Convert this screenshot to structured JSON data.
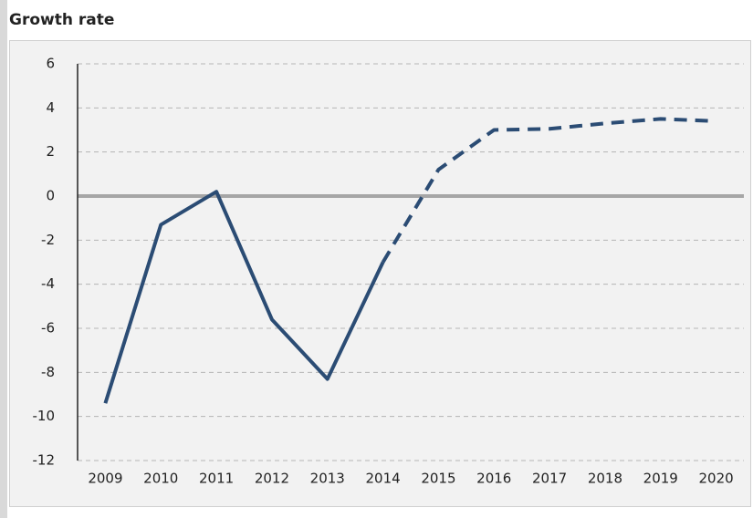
{
  "chart_data": {
    "type": "line",
    "title": "Growth rate",
    "categories": [
      "2009",
      "2010",
      "2011",
      "2012",
      "2013",
      "2014",
      "2015",
      "2016",
      "2017",
      "2018",
      "2019",
      "2020"
    ],
    "series": [
      {
        "color": "#2b4c74",
        "values": [
          -9.4,
          -1.3,
          0.2,
          -5.6,
          -8.3,
          -3.0,
          null,
          null,
          null,
          null,
          null,
          null
        ]
      },
      {
        "color": "#2b4c74",
        "dashed": true,
        "values": [
          null,
          null,
          null,
          null,
          null,
          -3.0,
          1.2,
          3.0,
          3.05,
          3.3,
          3.5,
          3.4
        ]
      }
    ],
    "ylim": [
      -12,
      6
    ],
    "yticks": [
      -12,
      -10,
      -8,
      -6,
      -4,
      -2,
      0,
      2,
      4,
      6
    ],
    "grid": true
  }
}
